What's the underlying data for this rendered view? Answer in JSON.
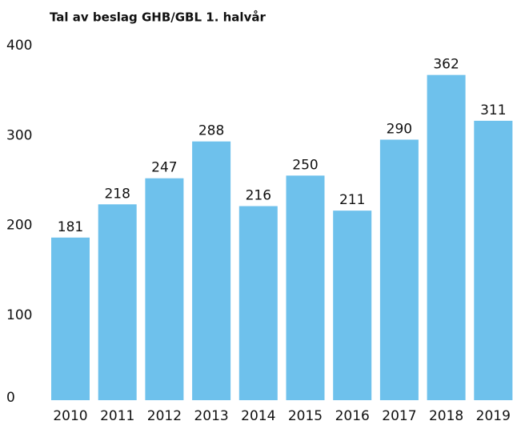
{
  "chart_data": {
    "type": "bar",
    "title": "Tal av beslag GHB/GBL 1. halvår",
    "categories": [
      "2010",
      "2011",
      "2012",
      "2013",
      "2014",
      "2015",
      "2016",
      "2017",
      "2018",
      "2019"
    ],
    "values": [
      181,
      218,
      247,
      288,
      216,
      250,
      211,
      290,
      362,
      311
    ],
    "color": "#6ec1ec",
    "ylim": [
      0,
      400
    ],
    "yticks": [
      0,
      100,
      200,
      300,
      400
    ],
    "grid": false
  }
}
